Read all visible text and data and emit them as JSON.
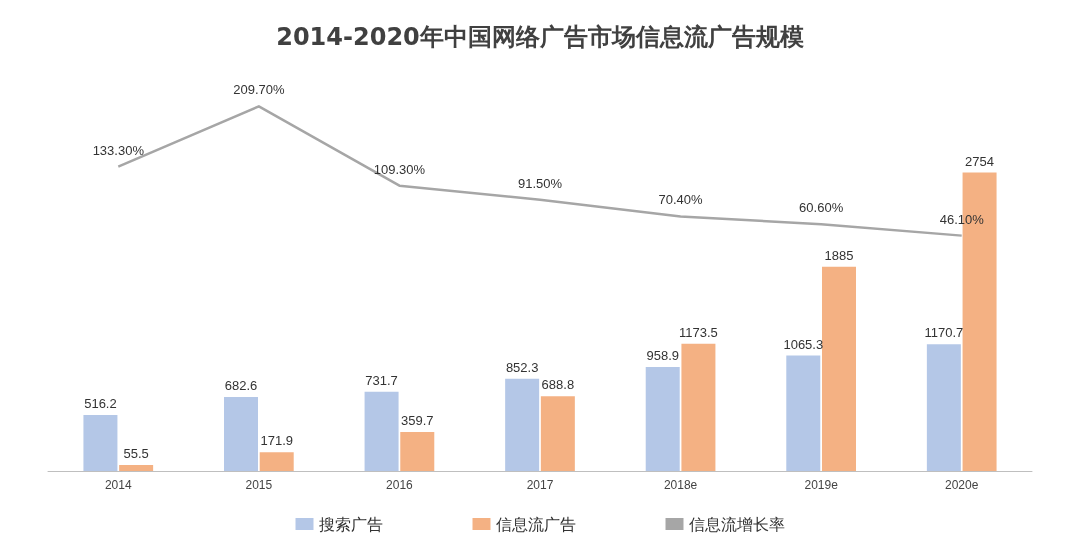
{
  "chart_data": {
    "type": "bar",
    "title": "2014-2020年中国网络广告市场信息流广告规模",
    "categories": [
      "2014",
      "2015",
      "2016",
      "2017",
      "2018e",
      "2019e",
      "2020e"
    ],
    "series": [
      {
        "name": "搜索广告",
        "color": "#b4c7e7",
        "values": [
          516.2,
          682.6,
          731.7,
          852.3,
          958.9,
          1065.3,
          1170.7
        ]
      },
      {
        "name": "信息流广告",
        "color": "#f4b183",
        "values": [
          55.5,
          171.9,
          359.7,
          688.8,
          1173.5,
          1885,
          2754
        ]
      },
      {
        "name": "信息流增长率",
        "type": "line",
        "axis": "y2",
        "color": "#a6a6a6",
        "values": [
          133.3,
          209.7,
          109.3,
          91.5,
          70.4,
          60.6,
          46.1
        ],
        "value_labels": [
          "133.30%",
          "209.70%",
          "109.30%",
          "91.50%",
          "70.40%",
          "60.60%",
          "46.10%"
        ]
      }
    ],
    "tick_labels": "x",
    "data_labels": true,
    "legend": "bottom",
    "marker": "none"
  }
}
